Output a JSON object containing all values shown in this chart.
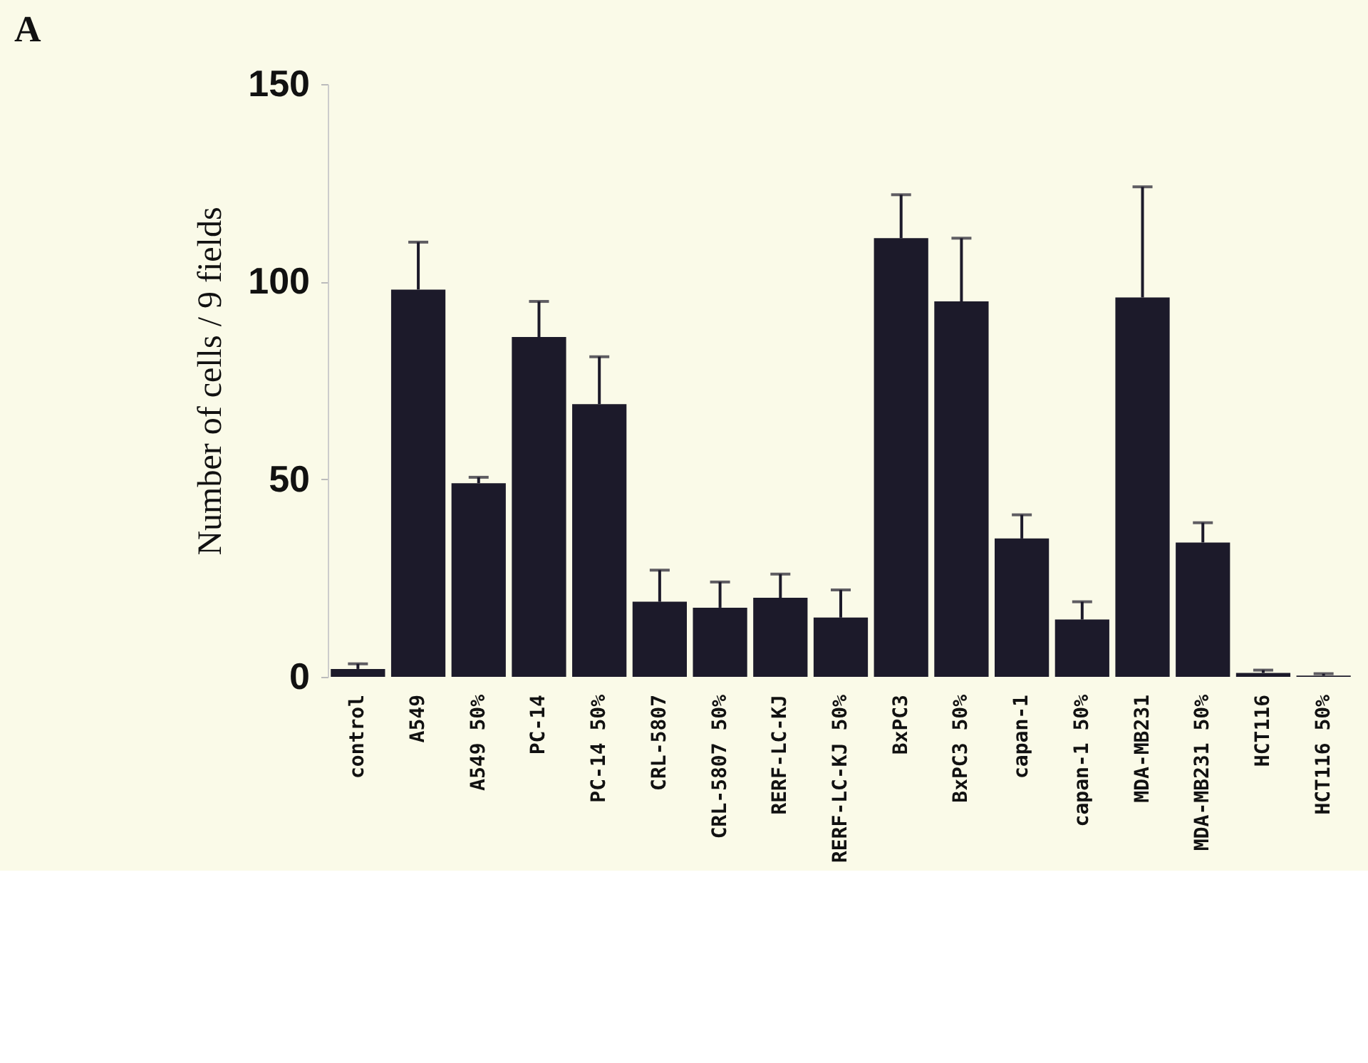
{
  "chart_data": {
    "type": "bar",
    "title": "A",
    "ylabel": "Number of cells / 9 fields",
    "categories": [
      "control",
      "A549",
      "A549 50%",
      "PC-14",
      "PC-14 50%",
      "CRL-5807",
      "CRL-5807 50%",
      "RERF-LC-KJ",
      "RERF-LC-KJ 50%",
      "BxPC3",
      "BxPC3 50%",
      "capan-1",
      "capan-1 50%",
      "MDA-MB231",
      "MDA-MB231 50%",
      "HCT116",
      "HCT116 50%"
    ],
    "values": [
      2,
      98,
      49,
      86,
      69,
      19,
      17.5,
      20,
      15,
      111,
      95,
      35,
      14.5,
      96,
      34,
      1,
      0.3
    ],
    "errors": [
      [
        2,
        3.3
      ],
      [
        98,
        110
      ],
      [
        49,
        50.5
      ],
      [
        86,
        95
      ],
      [
        69,
        81
      ],
      [
        19,
        27
      ],
      [
        17.5,
        24
      ],
      [
        20,
        26
      ],
      [
        15,
        22
      ],
      [
        111,
        122
      ],
      [
        95,
        111
      ],
      [
        35,
        41
      ],
      [
        14.5,
        19
      ],
      [
        96,
        124
      ],
      [
        34,
        39
      ],
      [
        1,
        1.7
      ],
      [
        0.3,
        0.8
      ]
    ],
    "color": "#1c1a2a",
    "ylim": [
      0,
      150
    ],
    "yticks": [
      0,
      50,
      100,
      150
    ],
    "grid": false
  }
}
